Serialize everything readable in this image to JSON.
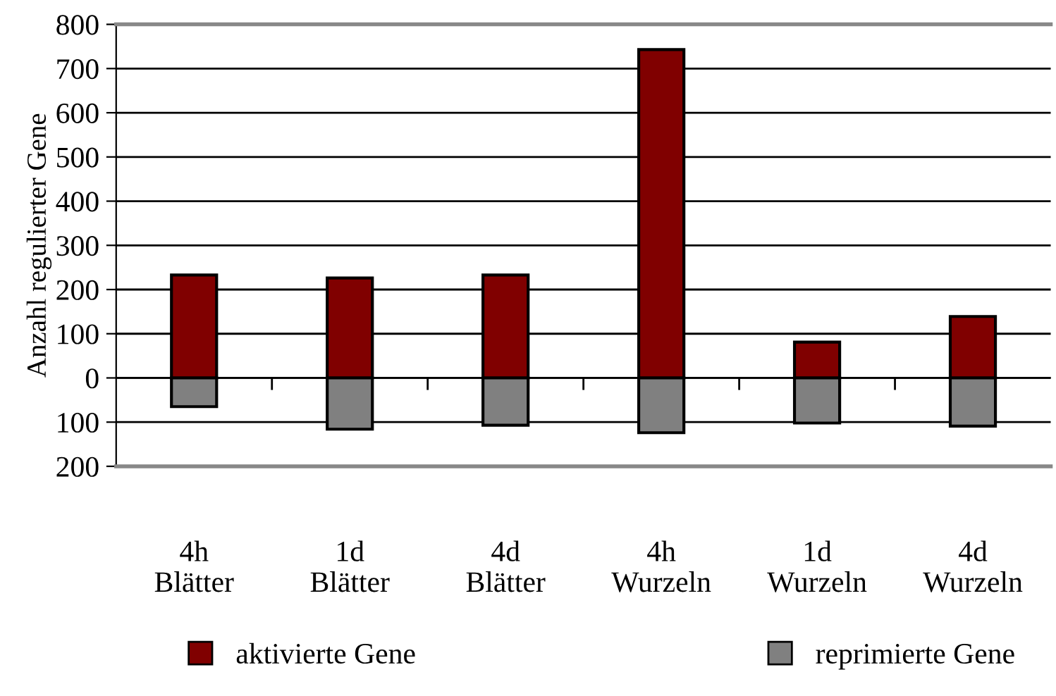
{
  "chart_data": {
    "type": "bar",
    "stacked": true,
    "ylabel": "Anzahl regulierter Gene",
    "categories": [
      "4h\nBlätter",
      "1d\nBlätter",
      "4d\nBlätter",
      "4h\nWurzeln",
      "1d\nWurzeln",
      "4d\nWurzeln"
    ],
    "series": [
      {
        "name": "aktivierte Gene",
        "color": "#800000",
        "values": [
          233,
          226,
          233,
          743,
          81,
          139
        ]
      },
      {
        "name": "reprimierte Gene",
        "color": "#808080",
        "values": [
          -65,
          -116,
          -107,
          -124,
          -102,
          -109
        ]
      }
    ],
    "ylim": [
      -200,
      800
    ],
    "yticks": [
      {
        "value": -200,
        "label": "200"
      },
      {
        "value": -100,
        "label": "100"
      },
      0,
      100,
      200,
      300,
      400,
      500,
      600,
      700,
      800
    ],
    "grid": "y",
    "legend": "bottom"
  }
}
